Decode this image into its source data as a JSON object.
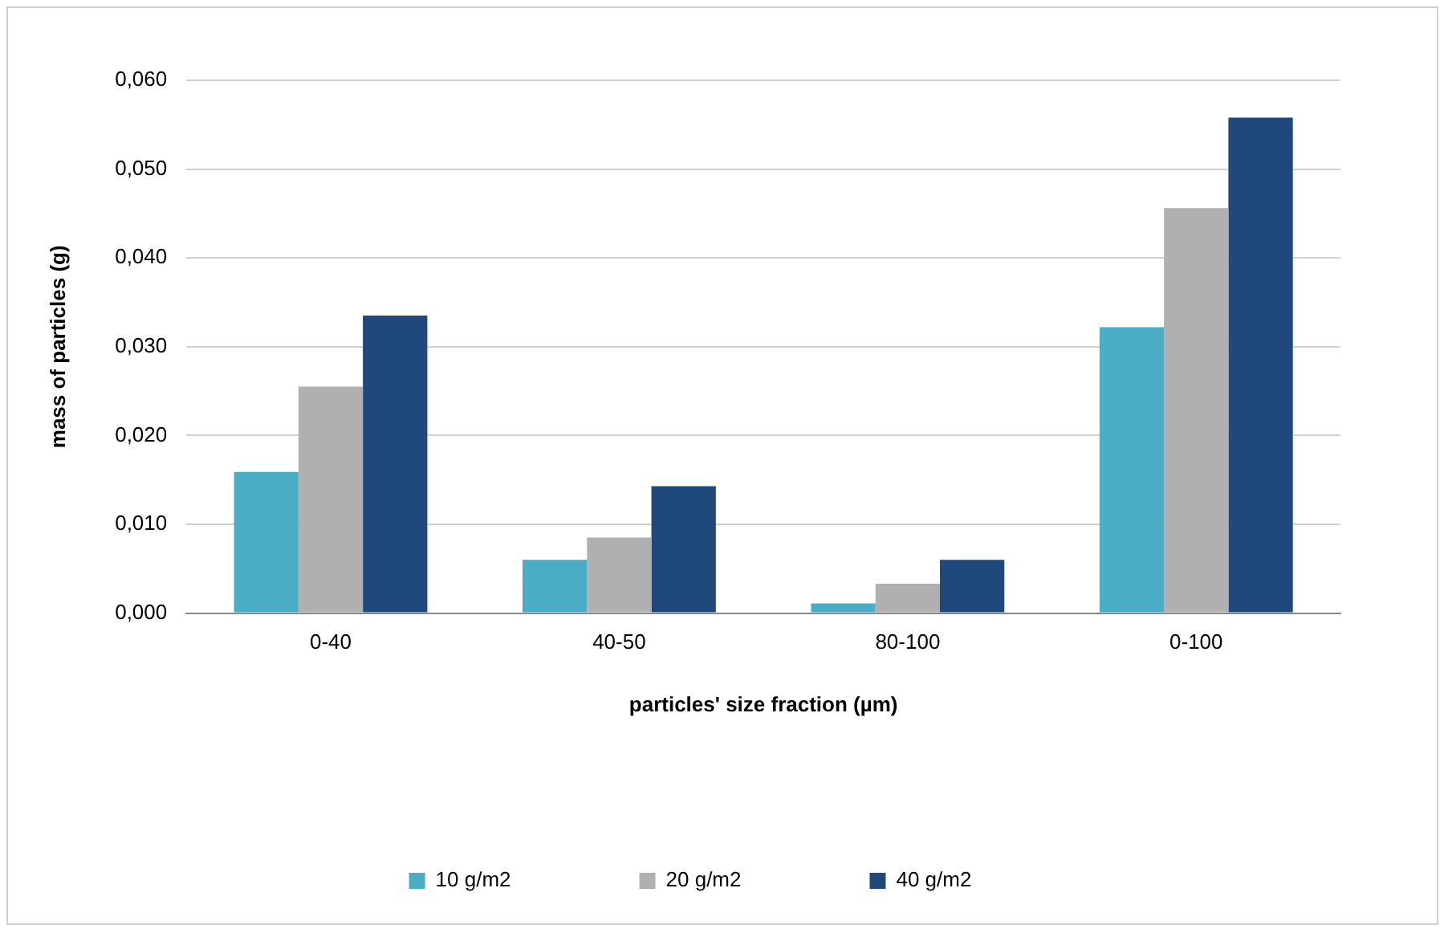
{
  "chart_data": {
    "type": "bar",
    "xlabel": "particles' size fraction (µm)",
    "ylabel": "mass of particles (g)",
    "categories": [
      "0-40",
      "40-50",
      "80-100",
      "0-100"
    ],
    "series": [
      {
        "name": "10 g/m2",
        "color": "#4bacc6",
        "values": [
          0.0159,
          0.006,
          0.0011,
          0.0322
        ]
      },
      {
        "name": "20 g/m2",
        "color": "#b0b0b0",
        "values": [
          0.0255,
          0.0085,
          0.0033,
          0.0456
        ]
      },
      {
        "name": "40 g/m2",
        "color": "#1f497d",
        "values": [
          0.0335,
          0.0143,
          0.006,
          0.0558
        ]
      }
    ],
    "ylim": [
      0,
      0.06
    ],
    "yticks": [
      {
        "value": 0,
        "label": "0,000"
      },
      {
        "value": 0.01,
        "label": "0,010"
      },
      {
        "value": 0.02,
        "label": "0,020"
      },
      {
        "value": 0.03,
        "label": "0,030"
      },
      {
        "value": 0.04,
        "label": "0,040"
      },
      {
        "value": 0.05,
        "label": "0,050"
      },
      {
        "value": 0.06,
        "label": "0,060"
      }
    ],
    "grid": "y",
    "legend": "bottom"
  }
}
